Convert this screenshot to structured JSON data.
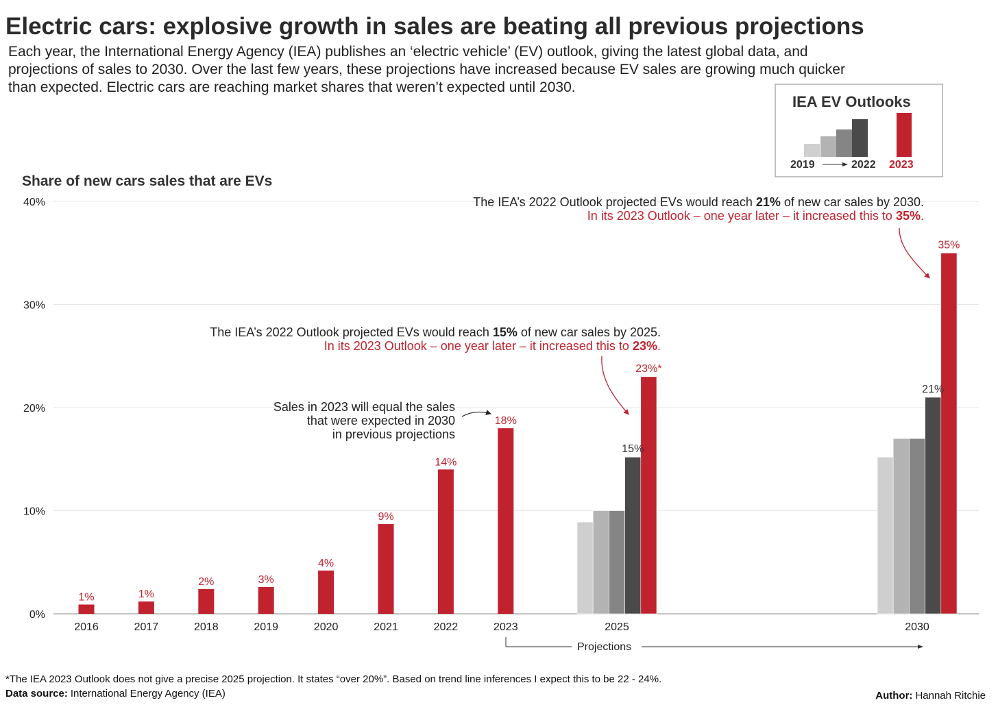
{
  "title": "Electric cars: explosive growth in sales are beating all previous projections",
  "subtitle_lines": [
    "Each year, the International Energy Agency (IEA) publishes an ‘electric vehicle’ (EV) outlook, giving the latest global data, and",
    "projections of sales to 2030. Over the last few years, these projections have increased because EV sales are growing much quicker",
    "than expected. Electric cars are reaching market shares that weren’t expected until 2030."
  ],
  "legend": {
    "title": "IEA EV Outlooks",
    "from_label": "2019",
    "to_label": "2022",
    "latest_label": "2023"
  },
  "colors": {
    "accent": "#c0222e",
    "outlook_2019": "#cfcfcf",
    "outlook_2020": "#b3b3b3",
    "outlook_2021": "#858585",
    "outlook_2022": "#4a4a4a",
    "grid": "#e6e6e6",
    "text": "#222222"
  },
  "chart_data": {
    "type": "bar",
    "title": "Share of new cars sales that are EVs",
    "ylim": [
      0,
      40
    ],
    "y_ticks": [
      "0%",
      "10%",
      "20%",
      "30%",
      "40%"
    ],
    "grid": true,
    "historical": {
      "categories": [
        "2016",
        "2017",
        "2018",
        "2019",
        "2020",
        "2021",
        "2022",
        "2023"
      ],
      "values": [
        0.9,
        1.2,
        2.4,
        2.6,
        4.2,
        8.7,
        14,
        18
      ],
      "labels": [
        "1%",
        "1%",
        "2%",
        "3%",
        "4%",
        "9%",
        "14%",
        "18%"
      ]
    },
    "projections": [
      {
        "year": "2025",
        "values": [
          8.9,
          10,
          10,
          15.2,
          23
        ],
        "labels": [
          "",
          "",
          "",
          "15%",
          "23%*"
        ]
      },
      {
        "year": "2030",
        "values": [
          15.2,
          17,
          17,
          21,
          35
        ],
        "labels": [
          "",
          "",
          "",
          "21%",
          "35%"
        ]
      }
    ],
    "series_order": [
      "outlook_2019",
      "outlook_2020",
      "outlook_2021",
      "outlook_2022",
      "outlook_2023"
    ],
    "projections_label": "Projections"
  },
  "annotations": {
    "a2030_line1_pre": "The IEA’s 2022 Outlook projected EVs would reach ",
    "a2030_line1_bold": "21%",
    "a2030_line1_post": " of new car sales by 2030.",
    "a2030_line2_pre": "In its 2023 Outlook – one year later – it increased this to ",
    "a2030_line2_bold": "35%",
    "a2030_line2_post": ".",
    "a2025_line1_pre": "The IEA’s 2022 Outlook projected EVs would reach ",
    "a2025_line1_bold": "15%",
    "a2025_line1_post": " of new car sales by 2025.",
    "a2025_line2_pre": "In its 2023 Outlook – one year later – it increased this to ",
    "a2025_line2_bold": "23%",
    "a2025_line2_post": ".",
    "a2023_lines": [
      "Sales in 2023 will  equal the sales",
      "that were expected in 2030",
      "in previous projections"
    ]
  },
  "footnote": "*The IEA 2023 Outlook does not give a precise 2025 projection. It states “over 20%”. Based on trend line inferences I expect this to be 22 - 24%.",
  "source_label": "Data source:",
  "source_value": "International Energy Agency (IEA)",
  "author_label": "Author:",
  "author_value": "Hannah Ritchie"
}
